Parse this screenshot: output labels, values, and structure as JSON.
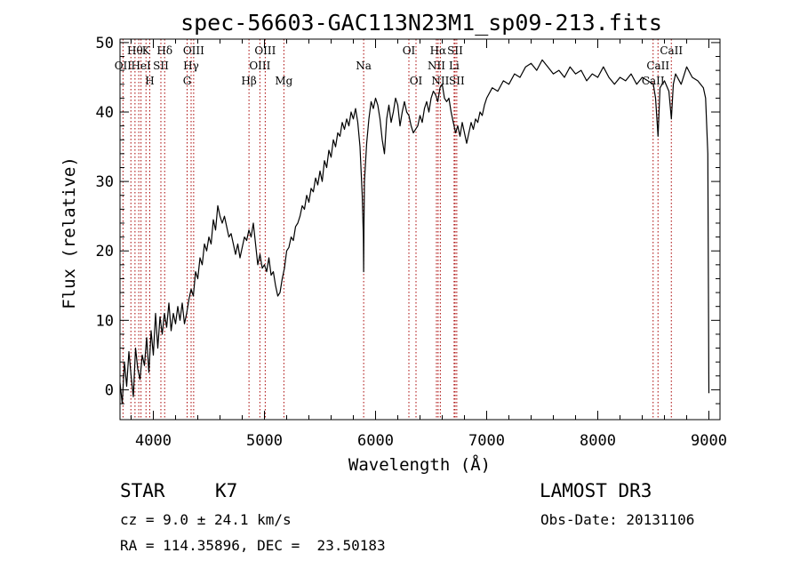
{
  "info": {
    "object_class": "STAR",
    "subclass": "K7",
    "survey": "LAMOST DR3",
    "redshift": "cz = 9.0 ± 24.1 km/s",
    "obs_date": "Obs-Date: 20131106",
    "coords": "RA = 114.35896, DEC =  23.50183"
  },
  "chart_data": {
    "type": "line",
    "title": "spec-56603-GAC113N23M1_sp09-213.fits",
    "xlabel": "Wavelength (Å)",
    "ylabel": "Flux (relative)",
    "xlim": [
      3700,
      9100
    ],
    "ylim": [
      -4.3,
      50.5
    ],
    "xticks": [
      4000,
      5000,
      6000,
      7000,
      8000,
      9000
    ],
    "yticks": [
      0,
      10,
      20,
      30,
      40,
      50
    ],
    "series": [
      {
        "name": "flux",
        "x": [
          3700,
          3720,
          3740,
          3760,
          3780,
          3800,
          3820,
          3840,
          3860,
          3880,
          3900,
          3920,
          3940,
          3960,
          3980,
          4000,
          4020,
          4040,
          4060,
          4080,
          4100,
          4120,
          4140,
          4160,
          4180,
          4200,
          4220,
          4240,
          4260,
          4280,
          4300,
          4320,
          4340,
          4360,
          4380,
          4400,
          4420,
          4440,
          4460,
          4480,
          4500,
          4520,
          4540,
          4560,
          4580,
          4600,
          4620,
          4640,
          4660,
          4680,
          4700,
          4720,
          4740,
          4760,
          4780,
          4800,
          4820,
          4840,
          4860,
          4880,
          4900,
          4920,
          4940,
          4960,
          4980,
          5000,
          5020,
          5040,
          5060,
          5080,
          5100,
          5120,
          5140,
          5160,
          5180,
          5200,
          5220,
          5240,
          5260,
          5280,
          5300,
          5320,
          5340,
          5360,
          5380,
          5400,
          5420,
          5440,
          5460,
          5480,
          5500,
          5520,
          5540,
          5560,
          5580,
          5600,
          5620,
          5640,
          5660,
          5680,
          5700,
          5720,
          5740,
          5760,
          5780,
          5800,
          5820,
          5840,
          5860,
          5880,
          5890,
          5893,
          5896,
          5900,
          5920,
          5940,
          5960,
          5980,
          6000,
          6020,
          6040,
          6060,
          6080,
          6100,
          6120,
          6140,
          6160,
          6180,
          6200,
          6220,
          6240,
          6260,
          6280,
          6300,
          6320,
          6340,
          6360,
          6380,
          6400,
          6420,
          6440,
          6460,
          6480,
          6500,
          6520,
          6540,
          6560,
          6580,
          6600,
          6620,
          6640,
          6660,
          6680,
          6700,
          6720,
          6740,
          6760,
          6780,
          6800,
          6820,
          6840,
          6860,
          6880,
          6900,
          6920,
          6940,
          6960,
          6980,
          7000,
          7050,
          7100,
          7150,
          7200,
          7250,
          7300,
          7350,
          7400,
          7450,
          7500,
          7550,
          7600,
          7650,
          7700,
          7750,
          7800,
          7850,
          7900,
          7950,
          8000,
          8050,
          8100,
          8150,
          8200,
          8250,
          8300,
          8350,
          8400,
          8450,
          8500,
          8520,
          8542,
          8560,
          8600,
          8640,
          8662,
          8680,
          8700,
          8750,
          8800,
          8850,
          8900,
          8950,
          8970,
          8990,
          9000
        ],
        "y": [
          1.0,
          -2.0,
          4.0,
          0.5,
          5.5,
          2.0,
          -1.0,
          6.0,
          3.0,
          1.5,
          5.0,
          3.5,
          7.5,
          2.5,
          8.5,
          5.0,
          11.0,
          6.0,
          10.5,
          8.0,
          11.0,
          9.0,
          12.5,
          8.5,
          11.0,
          9.5,
          12.0,
          10.0,
          12.5,
          9.5,
          11.0,
          13.0,
          14.5,
          13.5,
          17.0,
          16.0,
          19.0,
          18.0,
          21.0,
          20.0,
          22.0,
          21.0,
          24.5,
          23.0,
          26.5,
          25.0,
          24.0,
          25.0,
          23.5,
          22.0,
          22.5,
          21.0,
          19.5,
          21.0,
          19.0,
          20.5,
          22.0,
          21.5,
          23.0,
          22.0,
          24.0,
          21.0,
          18.0,
          19.5,
          17.5,
          18.0,
          17.0,
          19.0,
          16.5,
          17.0,
          15.0,
          13.5,
          14.0,
          16.0,
          17.5,
          20.0,
          20.5,
          22.0,
          21.5,
          23.5,
          24.0,
          25.0,
          26.5,
          26.0,
          28.0,
          27.0,
          29.0,
          28.5,
          30.5,
          29.5,
          31.5,
          30.0,
          33.0,
          32.0,
          34.5,
          33.5,
          36.0,
          35.0,
          37.0,
          36.5,
          38.5,
          37.5,
          39.0,
          38.0,
          40.0,
          39.0,
          40.5,
          38.5,
          35.0,
          28.0,
          22.0,
          17.0,
          24.0,
          30.0,
          35.5,
          39.0,
          41.5,
          40.5,
          42.0,
          41.0,
          39.0,
          36.0,
          34.0,
          39.0,
          41.0,
          38.5,
          40.0,
          42.0,
          41.0,
          38.0,
          40.0,
          41.5,
          40.0,
          39.5,
          38.0,
          37.0,
          37.5,
          38.0,
          39.5,
          38.5,
          40.5,
          41.5,
          40.0,
          42.0,
          43.0,
          42.5,
          41.5,
          43.5,
          44.0,
          42.0,
          41.5,
          42.0,
          40.0,
          38.5,
          37.0,
          38.0,
          36.5,
          38.5,
          37.0,
          35.5,
          37.0,
          38.5,
          37.5,
          39.0,
          38.5,
          40.0,
          39.5,
          41.0,
          42.0,
          43.5,
          43.0,
          44.5,
          44.0,
          45.5,
          45.0,
          46.5,
          47.0,
          46.0,
          47.5,
          46.5,
          45.5,
          46.0,
          45.0,
          46.5,
          45.5,
          46.0,
          44.5,
          45.5,
          45.0,
          46.5,
          45.0,
          44.0,
          45.0,
          44.5,
          45.5,
          44.0,
          45.0,
          44.5,
          44.0,
          42.0,
          36.5,
          43.5,
          44.5,
          43.0,
          39.0,
          44.0,
          45.5,
          44.0,
          46.5,
          45.0,
          44.5,
          43.5,
          42.0,
          34.0,
          -0.5
        ]
      }
    ],
    "lines": [
      {
        "wave": 3727,
        "label": "OII",
        "row": 1
      },
      {
        "wave": 3798,
        "label": "",
        "row": 1
      },
      {
        "wave": 3835,
        "label": "Hθ",
        "row": 0
      },
      {
        "wave": 3869,
        "label": "",
        "row": 1
      },
      {
        "wave": 3889,
        "label": "HeI",
        "row": 1
      },
      {
        "wave": 3934,
        "label": "K",
        "row": 0
      },
      {
        "wave": 3968,
        "label": "H",
        "row": 2
      },
      {
        "wave": 4102,
        "label": "Hδ",
        "row": 0
      },
      {
        "wave": 4068,
        "label": "SII",
        "row": 1
      },
      {
        "wave": 4340,
        "label": "Hγ",
        "row": 1
      },
      {
        "wave": 4304,
        "label": "G",
        "row": 2
      },
      {
        "wave": 4363,
        "label": "OIII",
        "row": 0
      },
      {
        "wave": 4861,
        "label": "Hβ",
        "row": 2
      },
      {
        "wave": 4959,
        "label": "OIII",
        "row": 1
      },
      {
        "wave": 5007,
        "label": "OIII",
        "row": 0
      },
      {
        "wave": 5175,
        "label": "Mg",
        "row": 2
      },
      {
        "wave": 5893,
        "label": "Na",
        "row": 1
      },
      {
        "wave": 6300,
        "label": "OI",
        "row": 0
      },
      {
        "wave": 6364,
        "label": "OI",
        "row": 2
      },
      {
        "wave": 6548,
        "label": "NII",
        "row": 1
      },
      {
        "wave": 6563,
        "label": "Hα",
        "row": 0
      },
      {
        "wave": 6583,
        "label": "NII",
        "row": 2
      },
      {
        "wave": 6707,
        "label": "Li",
        "row": 1
      },
      {
        "wave": 6716,
        "label": "SII",
        "row": 0
      },
      {
        "wave": 6731,
        "label": "SII",
        "row": 2
      },
      {
        "wave": 8498,
        "label": "CaII",
        "row": 2
      },
      {
        "wave": 8542,
        "label": "CaII",
        "row": 1
      },
      {
        "wave": 8662,
        "label": "CaII",
        "row": 0
      }
    ]
  }
}
